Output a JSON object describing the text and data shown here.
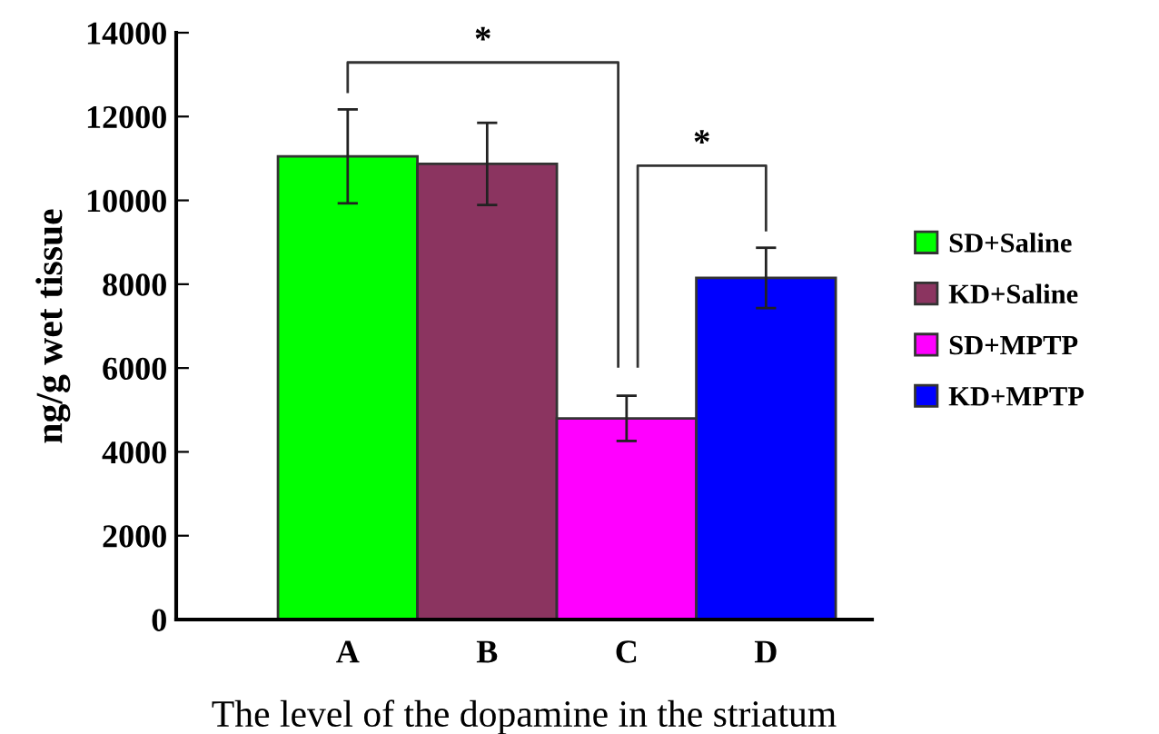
{
  "chart_data": {
    "type": "bar",
    "ylabel": "ng/g wet tissue",
    "xlabel": "The level of the dopamine in the striatum",
    "categories": [
      "A",
      "B",
      "C",
      "D"
    ],
    "series": [
      {
        "name": "SD+Saline",
        "color": "#00ff00",
        "values": [
          11050,
          null,
          null,
          null
        ],
        "errors": [
          1120,
          null,
          null,
          null
        ]
      },
      {
        "name": "KD+Saline",
        "color": "#8b3460",
        "values": [
          null,
          10870,
          null,
          null
        ],
        "errors": [
          null,
          980,
          null,
          null
        ]
      },
      {
        "name": "SD+MPTP",
        "color": "#ff00ff",
        "values": [
          null,
          null,
          4800,
          null
        ],
        "errors": [
          null,
          null,
          540,
          null
        ]
      },
      {
        "name": "KD+MPTP",
        "color": "#0000ff",
        "values": [
          null,
          null,
          null,
          8150
        ],
        "errors": [
          null,
          null,
          null,
          720
        ]
      }
    ],
    "ylim": [
      0,
      14000
    ],
    "yticks": [
      0,
      2000,
      4000,
      6000,
      8000,
      10000,
      12000,
      14000
    ],
    "annotations": [
      "*",
      "*"
    ],
    "legend": "right",
    "grid": false
  }
}
